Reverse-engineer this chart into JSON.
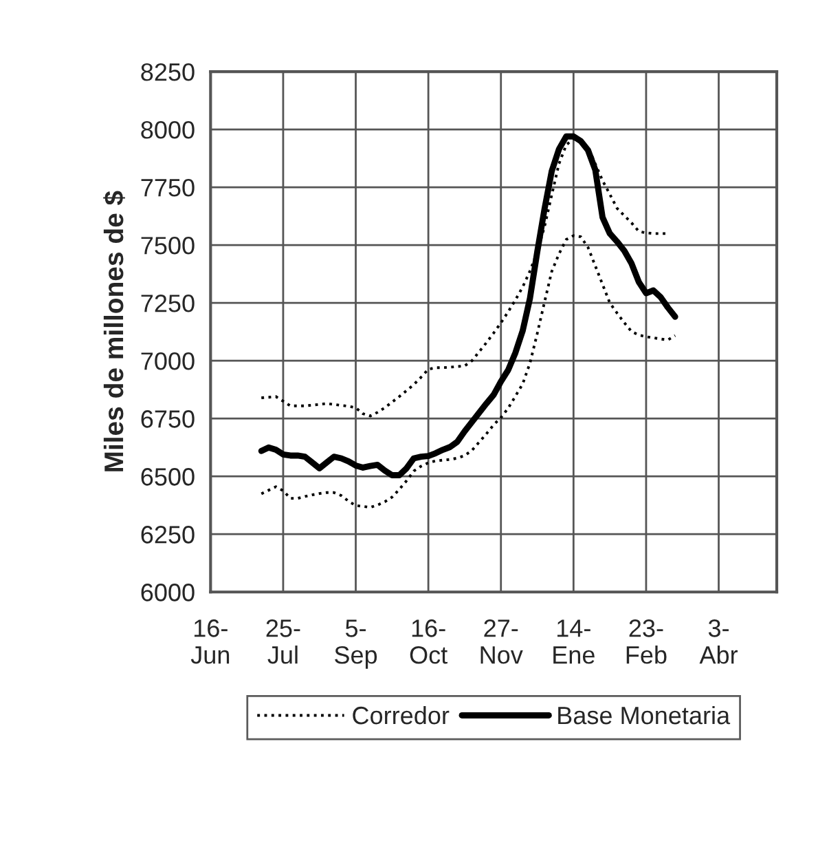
{
  "chart_data": {
    "type": "line",
    "ylabel": "Miles de millones de $",
    "categories": [
      "16-\nJun",
      null,
      null,
      null,
      null,
      null,
      null,
      null,
      null,
      null,
      "25-\nJul",
      null,
      null,
      null,
      null,
      null,
      null,
      null,
      null,
      null,
      "5-\nSep",
      null,
      null,
      null,
      null,
      null,
      null,
      null,
      null,
      null,
      "16-\nOct",
      null,
      null,
      null,
      null,
      null,
      null,
      null,
      null,
      null,
      "27-\nNov",
      null,
      null,
      null,
      null,
      null,
      null,
      null,
      null,
      null,
      "14-\nEne",
      null,
      null,
      null,
      null,
      null,
      null,
      null,
      null,
      null,
      "23-\nFeb",
      null,
      null,
      null,
      null,
      null,
      null,
      null,
      null,
      null,
      "3-\nAbr",
      null,
      null,
      null,
      null,
      null,
      null,
      null,
      null
    ],
    "ylim": [
      6000,
      8250
    ],
    "yticks": [
      6000,
      6250,
      6500,
      6750,
      7000,
      7250,
      7500,
      7750,
      8000,
      8250
    ],
    "grid": true,
    "legend": "bottom",
    "marker": "none",
    "series": [
      {
        "name": "Corredor",
        "color": "#000000",
        "line_style": "dotted",
        "values": [
          null,
          null,
          null,
          null,
          null,
          null,
          null,
          6840,
          6842,
          6845,
          6825,
          6805,
          6805,
          6805,
          6808,
          6811,
          6815,
          6811,
          6807,
          6803,
          6797,
          6771,
          6761,
          6777,
          6797,
          6821,
          6845,
          6871,
          6897,
          6929,
          6963,
          6970,
          6970,
          6972,
          6975,
          6978,
          7000,
          7039,
          7078,
          7120,
          7164,
          7212,
          7263,
          7319,
          7388,
          7471,
          7579,
          7717,
          7852,
          7933,
          7960,
          7942,
          7925,
          7851,
          7779,
          7720,
          7659,
          7627,
          7596,
          7559,
          7553,
          7550,
          7550,
          7550,
          null,
          null,
          null,
          null,
          null,
          null,
          null,
          null,
          null,
          null,
          null,
          null,
          null,
          null,
          null
        ]
      },
      {
        "color": "#000000",
        "line_style": "dotted",
        "values": [
          null,
          null,
          null,
          null,
          null,
          null,
          null,
          6425,
          6440,
          6455,
          6438,
          6405,
          6405,
          6413,
          6420,
          6426,
          6430,
          6430,
          6417,
          6393,
          6374,
          6370,
          6366,
          6376,
          6390,
          6410,
          6444,
          6481,
          6523,
          6544,
          6559,
          6567,
          6570,
          6573,
          6579,
          6590,
          6612,
          6648,
          6684,
          6723,
          6754,
          6795,
          6847,
          6900,
          6990,
          7117,
          7253,
          7386,
          7462,
          7524,
          7541,
          7536,
          7490,
          7410,
          7330,
          7250,
          7206,
          7164,
          7126,
          7111,
          7104,
          7099,
          7094,
          7090,
          7109,
          null,
          null,
          null,
          null,
          null,
          null,
          null,
          null,
          null,
          null,
          null,
          null,
          null,
          null
        ]
      },
      {
        "name": "Base Monetaria",
        "color": "#000000",
        "line_style": "solid",
        "values": [
          null,
          null,
          null,
          null,
          null,
          null,
          null,
          6610,
          6625,
          6615,
          6595,
          6590,
          6590,
          6585,
          6560,
          6535,
          6560,
          6585,
          6578,
          6565,
          6547,
          6538,
          6545,
          6550,
          6525,
          6505,
          6505,
          6535,
          6578,
          6585,
          6588,
          6600,
          6615,
          6627,
          6650,
          6695,
          6735,
          6775,
          6815,
          6853,
          6910,
          6960,
          7035,
          7130,
          7270,
          7470,
          7655,
          7820,
          7915,
          7970,
          7970,
          7950,
          7910,
          7825,
          7620,
          7550,
          7515,
          7475,
          7420,
          7340,
          7292,
          7304,
          7275,
          7230,
          7190,
          null,
          null,
          null,
          null,
          null,
          null,
          null,
          null,
          null,
          null,
          null,
          null,
          null,
          null
        ]
      }
    ]
  }
}
